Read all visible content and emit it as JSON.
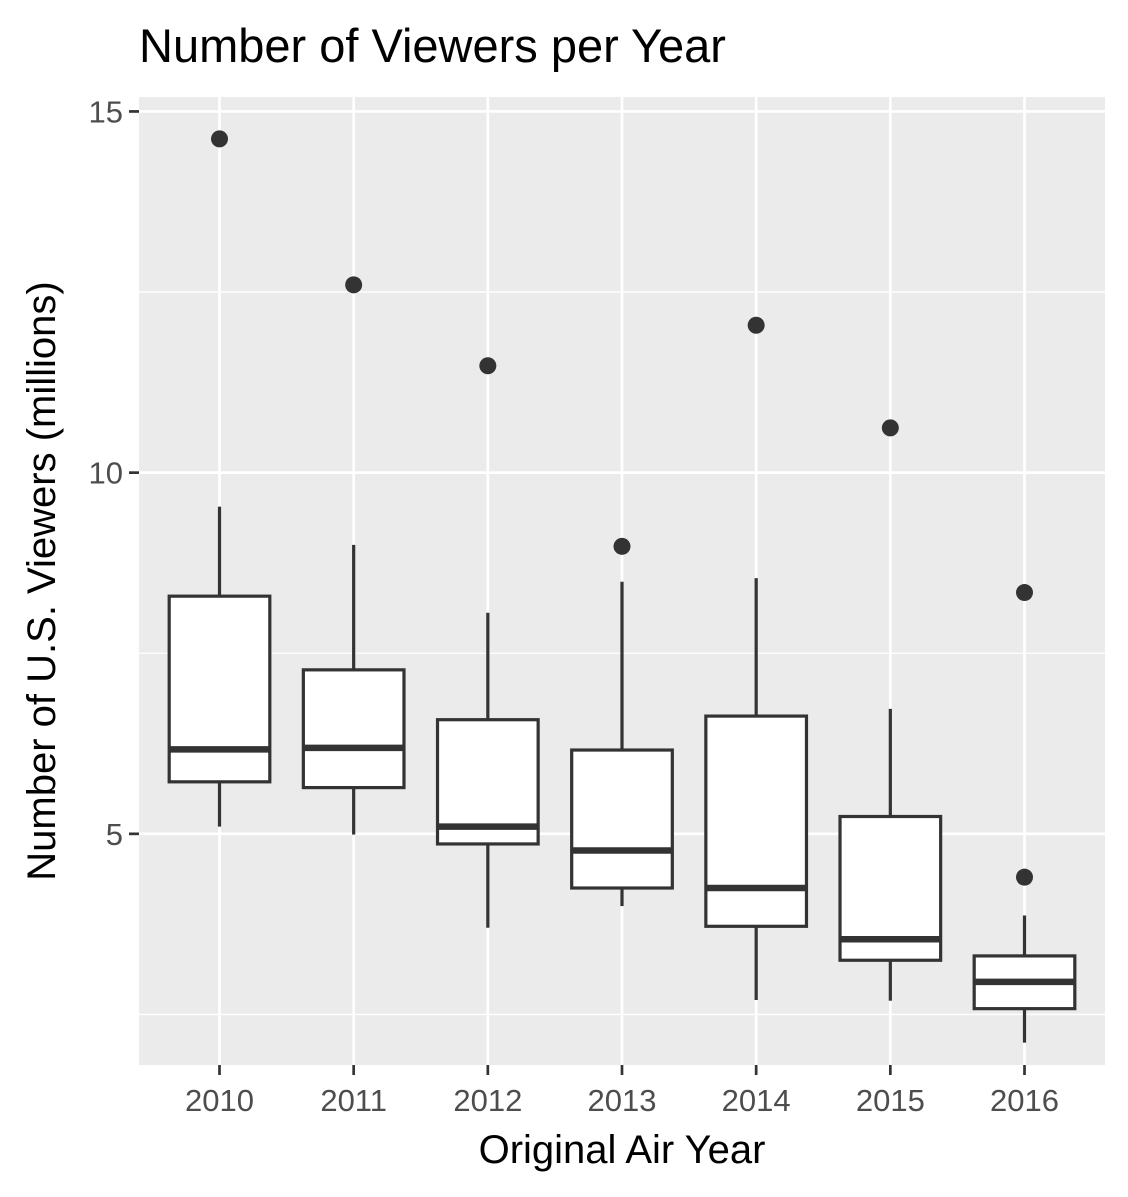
{
  "chart_data": {
    "type": "box",
    "title": "Number of Viewers per Year",
    "xlabel": "Original Air Year",
    "ylabel": "Number of U.S. Viewers (millions)",
    "categories": [
      "2010",
      "2011",
      "2012",
      "2013",
      "2014",
      "2015",
      "2016"
    ],
    "ylim": [
      1.8,
      15.2
    ],
    "yticks": [
      5,
      10,
      15
    ],
    "grid": true,
    "legend": "none",
    "colors": {
      "panel": "#ebebeb",
      "grid": "#ffffff",
      "box_fill": "#ffffff",
      "box_line": "#333333",
      "outlier": "#333333",
      "tick_text": "#4d4d4d",
      "title_text": "#000000"
    },
    "boxes": [
      {
        "x": "2010",
        "lower_whisker": 5.1,
        "q1": 5.72,
        "median": 6.17,
        "q3": 8.29,
        "upper_whisker": 9.53,
        "outliers": [
          14.62
        ]
      },
      {
        "x": "2011",
        "lower_whisker": 4.99,
        "q1": 5.64,
        "median": 6.19,
        "q3": 7.27,
        "upper_whisker": 9.0,
        "outliers": [
          12.6
        ]
      },
      {
        "x": "2012",
        "lower_whisker": 3.7,
        "q1": 4.86,
        "median": 5.1,
        "q3": 6.58,
        "upper_whisker": 8.06,
        "outliers": [
          11.48
        ]
      },
      {
        "x": "2013",
        "lower_whisker": 4.0,
        "q1": 4.25,
        "median": 4.77,
        "q3": 6.16,
        "upper_whisker": 8.49,
        "outliers": [
          8.98
        ]
      },
      {
        "x": "2014",
        "lower_whisker": 2.7,
        "q1": 3.72,
        "median": 4.25,
        "q3": 6.63,
        "upper_whisker": 8.54,
        "outliers": [
          12.04
        ]
      },
      {
        "x": "2015",
        "lower_whisker": 2.69,
        "q1": 3.25,
        "median": 3.54,
        "q3": 5.24,
        "upper_whisker": 6.73,
        "outliers": [
          10.62
        ]
      },
      {
        "x": "2016",
        "lower_whisker": 2.11,
        "q1": 2.58,
        "median": 2.95,
        "q3": 3.31,
        "upper_whisker": 3.87,
        "outliers": [
          4.4,
          8.34
        ]
      }
    ]
  }
}
